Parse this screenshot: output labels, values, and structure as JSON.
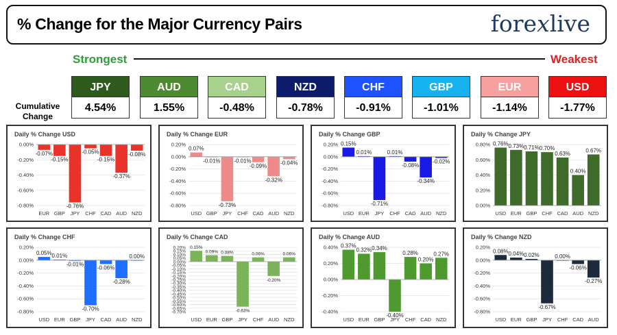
{
  "header": {
    "title": "% Change for the Major Currency Pairs",
    "logo_left": "fore",
    "logo_x": "x",
    "logo_right": "live"
  },
  "strength": {
    "strongest_label": "Strongest",
    "weakest_label": "Weakest",
    "cumulative_line1": "Cumulative",
    "cumulative_line2": "Change",
    "currencies": [
      {
        "name": "JPY",
        "value": "4.54%",
        "color": "#2f5a1e"
      },
      {
        "name": "AUD",
        "value": "1.55%",
        "color": "#4e8a32"
      },
      {
        "name": "CAD",
        "value": "-0.48%",
        "color": "#a9d18e"
      },
      {
        "name": "NZD",
        "value": "-0.78%",
        "color": "#0d1b6b"
      },
      {
        "name": "CHF",
        "value": "-0.91%",
        "color": "#1f52ff"
      },
      {
        "name": "GBP",
        "value": "-1.01%",
        "color": "#17b2f0"
      },
      {
        "name": "EUR",
        "value": "-1.14%",
        "color": "#f7a0a0"
      },
      {
        "name": "USD",
        "value": "-1.77%",
        "color": "#ee1111"
      }
    ]
  },
  "chart_data": [
    {
      "type": "bar",
      "title": "Daily % Change USD",
      "categories": [
        "EUR",
        "GBP",
        "JPY",
        "CHF",
        "CAD",
        "AUD",
        "NZD"
      ],
      "values": [
        -0.07,
        -0.15,
        -0.76,
        -0.05,
        -0.15,
        -0.37,
        -0.08
      ],
      "labels": [
        "-0.07%",
        "-0.15%",
        "-0.76%",
        "-0.05%",
        "-0.15%",
        "-0.37%",
        "-0.08%"
      ],
      "ylim": [
        -0.8,
        0.0
      ],
      "ticks": [
        0.0,
        -0.2,
        -0.4,
        -0.6,
        -0.8
      ],
      "tick_labels": [
        "0.00%",
        "-0.20%",
        "-0.40%",
        "-0.60%",
        "-0.80%"
      ],
      "color": "#e8322a"
    },
    {
      "type": "bar",
      "title": "Daily % Change EUR",
      "categories": [
        "USD",
        "GBP",
        "JPY",
        "CHF",
        "CAD",
        "AUD",
        "NZD"
      ],
      "values": [
        0.07,
        -0.01,
        -0.73,
        -0.01,
        -0.09,
        -0.32,
        -0.04
      ],
      "labels": [
        "0.07%",
        "-0.01%",
        "-0.73%",
        "-0.01%",
        "-0.09%",
        "-0.32%",
        "-0.04%"
      ],
      "ylim": [
        -0.8,
        0.2
      ],
      "ticks": [
        0.2,
        0.0,
        -0.2,
        -0.4,
        -0.6,
        -0.8
      ],
      "tick_labels": [
        "0.20%",
        "0.00%",
        "-0.20%",
        "-0.40%",
        "-0.60%",
        "-0.80%"
      ],
      "color": "#ef8a8a"
    },
    {
      "type": "bar",
      "title": "Daily % Change GBP",
      "categories": [
        "USD",
        "EUR",
        "JPY",
        "CHF",
        "CAD",
        "AUD",
        "NZD"
      ],
      "values": [
        0.15,
        0.01,
        -0.71,
        0.01,
        -0.08,
        -0.34,
        -0.02
      ],
      "labels": [
        "0.15%",
        "0.01%",
        "-0.71%",
        "0.01%",
        "-0.08%",
        "-0.34%",
        "-0.02%"
      ],
      "ylim": [
        -0.8,
        0.2
      ],
      "ticks": [
        0.2,
        0.0,
        -0.2,
        -0.4,
        -0.6,
        -0.8
      ],
      "tick_labels": [
        "0.20%",
        "0.00%",
        "-0.20%",
        "-0.40%",
        "-0.60%",
        "-0.80%"
      ],
      "color": "#1a1ae6"
    },
    {
      "type": "bar",
      "title": "Daily % Change JPY",
      "categories": [
        "USD",
        "EUR",
        "GBP",
        "CHF",
        "CAD",
        "AUD",
        "NZD"
      ],
      "values": [
        0.76,
        0.73,
        0.71,
        0.7,
        0.63,
        0.4,
        0.67
      ],
      "labels": [
        "0.76%",
        "0.73%",
        "0.71%",
        "0.70%",
        "0.63%",
        "0.40%",
        "0.67%"
      ],
      "ylim": [
        0.0,
        0.8
      ],
      "ticks": [
        0.8,
        0.6,
        0.4,
        0.2,
        0.0
      ],
      "tick_labels": [
        "0.80%",
        "0.60%",
        "0.40%",
        "0.20%",
        "0.00%"
      ],
      "color": "#3f6b2a"
    },
    {
      "type": "bar",
      "title": "Daily % Change CHF",
      "categories": [
        "USD",
        "EUR",
        "GBP",
        "JPY",
        "CAD",
        "AUD",
        "NZD"
      ],
      "values": [
        0.05,
        0.01,
        -0.01,
        -0.7,
        -0.06,
        -0.28,
        0.0
      ],
      "labels": [
        "0.05%",
        "0.01%",
        "-0.01%",
        "-0.70%",
        "-0.06%",
        "-0.28%",
        "0.00%"
      ],
      "ylim": [
        -0.8,
        0.2
      ],
      "ticks": [
        0.2,
        0.0,
        -0.2,
        -0.4,
        -0.6,
        -0.8
      ],
      "tick_labels": [
        "0.20%",
        "0.00%",
        "-0.20%",
        "-0.40%",
        "-0.60%",
        "-0.80%"
      ],
      "color": "#1e6fff"
    },
    {
      "type": "bar",
      "title": "Daily % Change CAD",
      "categories": [
        "USD",
        "EUR",
        "GBP",
        "JPY",
        "CHF",
        "AUD",
        "NZD"
      ],
      "values": [
        0.15,
        0.09,
        0.08,
        -0.63,
        0.06,
        -0.2,
        0.06
      ],
      "labels": [
        "0.15%",
        "0.09%",
        "0.08%",
        "-0.63%",
        "0.06%",
        "-0.20%",
        "0.06%"
      ],
      "ylim": [
        -0.7,
        0.2
      ],
      "ticks": [
        0.2,
        0.15,
        0.1,
        0.05,
        0.0,
        -0.05,
        -0.1,
        -0.15,
        -0.2,
        -0.25,
        -0.3,
        -0.35,
        -0.4,
        -0.45,
        -0.5,
        -0.55,
        -0.6,
        -0.65,
        -0.7
      ],
      "tick_labels": [
        "0.20%",
        "0.15%",
        "0.10%",
        "0.05%",
        "0.00%",
        "-0.05%",
        "-0.10%",
        "-0.15%",
        "-0.20%",
        "-0.25%",
        "-0.30%",
        "-0.35%",
        "-0.40%",
        "-0.45%",
        "-0.50%",
        "-0.55%",
        "-0.60%",
        "-0.65%",
        "-0.70%"
      ],
      "color": "#7ab35a"
    },
    {
      "type": "bar",
      "title": "Daily % Change AUD",
      "categories": [
        "USD",
        "EUR",
        "GBP",
        "JPY",
        "CHF",
        "CAD",
        "NZD"
      ],
      "values": [
        0.37,
        0.32,
        0.34,
        -0.4,
        0.28,
        0.2,
        0.27
      ],
      "labels": [
        "0.37%",
        "0.32%",
        "0.34%",
        "-0.40%",
        "0.28%",
        "0.20%",
        "0.27%"
      ],
      "ylim": [
        -0.4,
        0.4
      ],
      "ticks": [
        0.4,
        0.2,
        0.0,
        -0.2,
        -0.4
      ],
      "tick_labels": [
        "0.40%",
        "0.20%",
        "0.00%",
        "-0.20%",
        "-0.40%"
      ],
      "color": "#4e9a2e"
    },
    {
      "type": "bar",
      "title": "Daily % Change NZD",
      "categories": [
        "USD",
        "EUR",
        "GBP",
        "JPY",
        "CHF",
        "CAD",
        "AUD"
      ],
      "values": [
        0.08,
        0.04,
        0.02,
        -0.67,
        0.0,
        -0.06,
        -0.27
      ],
      "labels": [
        "0.08%",
        "0.04%",
        "0.02%",
        "-0.67%",
        "0.00%",
        "-0.06%",
        "-0.27%"
      ],
      "ylim": [
        -0.8,
        0.2
      ],
      "ticks": [
        0.2,
        0.0,
        -0.2,
        -0.4,
        -0.6,
        -0.8
      ],
      "tick_labels": [
        "0.20%",
        "0.00%",
        "-0.20%",
        "-0.40%",
        "-0.60%",
        "-0.80%"
      ],
      "color": "#1c2a3c"
    }
  ]
}
